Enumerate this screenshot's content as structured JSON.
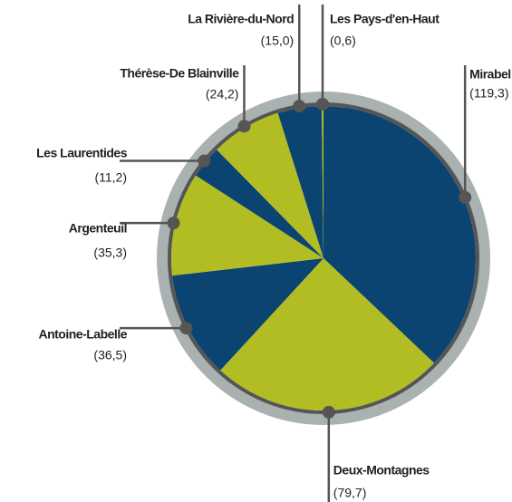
{
  "chart_data": {
    "type": "pie",
    "categories": [
      "Mirabel",
      "Deux-Montagnes",
      "Antoine-Labelle",
      "Argenteuil",
      "Les Laurentides",
      "Thérèse-De Blainville",
      "La Rivière-du-Nord",
      "Les Pays-d'en-Haut"
    ],
    "values": [
      119.3,
      79.7,
      36.5,
      35.3,
      11.2,
      24.2,
      15.0,
      0.6
    ],
    "value_labels": [
      "(119,3)",
      "(79,7)",
      "(36,5)",
      "(35,3)",
      "(11,2)",
      "(24,2)",
      "(15,0)",
      "(0,6)"
    ],
    "colors": [
      "#0b4470",
      "#b1bd22",
      "#0b4470",
      "#b1bd22",
      "#0b4470",
      "#b1bd22",
      "#0b4470",
      "#b1bd22"
    ]
  }
}
